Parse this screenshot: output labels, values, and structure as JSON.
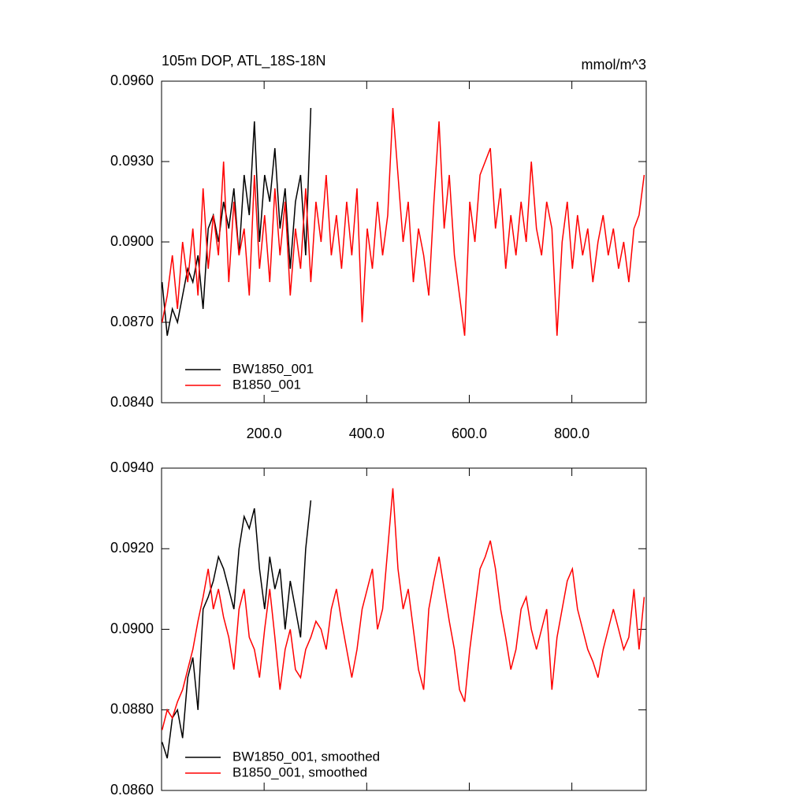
{
  "chart_data": [
    {
      "type": "line",
      "title": "105m DOP, ATL_18S-18N",
      "units": "mmol/m^3",
      "xlim": [
        0,
        945
      ],
      "ylim": [
        0.084,
        0.096
      ],
      "xticks": [
        {
          "value": 200,
          "label": "200.0"
        },
        {
          "value": 400,
          "label": "400.0"
        },
        {
          "value": 600,
          "label": "600.0"
        },
        {
          "value": 800,
          "label": "800.0"
        }
      ],
      "yticks": [
        {
          "value": 0.084,
          "label": "0.0840"
        },
        {
          "value": 0.087,
          "label": "0.0870"
        },
        {
          "value": 0.09,
          "label": "0.0900"
        },
        {
          "value": 0.093,
          "label": "0.0930"
        },
        {
          "value": 0.096,
          "label": "0.0960"
        }
      ],
      "legend": "lower left",
      "series": [
        {
          "name": "BW1850_001",
          "color": "#000000",
          "x": [
            1,
            11,
            21,
            31,
            41,
            51,
            61,
            71,
            81,
            91,
            101,
            111,
            121,
            131,
            141,
            151,
            161,
            171,
            181,
            191,
            201,
            211,
            221,
            231,
            241,
            251,
            261,
            271,
            281,
            291
          ],
          "values": [
            0.0885,
            0.0865,
            0.0875,
            0.087,
            0.088,
            0.089,
            0.0885,
            0.0895,
            0.0875,
            0.0905,
            0.091,
            0.09,
            0.0915,
            0.0905,
            0.092,
            0.0895,
            0.0925,
            0.091,
            0.0945,
            0.09,
            0.0925,
            0.0915,
            0.0935,
            0.0905,
            0.092,
            0.089,
            0.0915,
            0.0925,
            0.0895,
            0.095
          ]
        },
        {
          "name": "B1850_001",
          "color": "#ff0000",
          "x": [
            1,
            11,
            21,
            31,
            41,
            51,
            61,
            71,
            81,
            91,
            101,
            111,
            121,
            131,
            141,
            151,
            161,
            171,
            181,
            191,
            201,
            211,
            221,
            231,
            241,
            251,
            261,
            271,
            281,
            291,
            301,
            311,
            321,
            331,
            341,
            351,
            361,
            371,
            381,
            391,
            401,
            411,
            421,
            431,
            441,
            451,
            461,
            471,
            481,
            491,
            501,
            511,
            521,
            531,
            541,
            551,
            561,
            571,
            581,
            591,
            601,
            611,
            621,
            631,
            641,
            651,
            661,
            671,
            681,
            691,
            701,
            711,
            721,
            731,
            741,
            751,
            761,
            771,
            781,
            791,
            801,
            811,
            821,
            831,
            841,
            851,
            861,
            871,
            881,
            891,
            901,
            911,
            921,
            931,
            941
          ],
          "values": [
            0.087,
            0.088,
            0.0895,
            0.0875,
            0.09,
            0.0885,
            0.0905,
            0.088,
            0.092,
            0.089,
            0.091,
            0.0895,
            0.093,
            0.0885,
            0.0915,
            0.0895,
            0.0905,
            0.088,
            0.0925,
            0.089,
            0.091,
            0.0885,
            0.092,
            0.0895,
            0.0915,
            0.088,
            0.0905,
            0.089,
            0.092,
            0.0885,
            0.0915,
            0.09,
            0.0925,
            0.0895,
            0.091,
            0.089,
            0.0915,
            0.0895,
            0.092,
            0.087,
            0.0905,
            0.089,
            0.0915,
            0.0895,
            0.091,
            0.095,
            0.0925,
            0.09,
            0.0915,
            0.0885,
            0.0905,
            0.0895,
            0.088,
            0.0915,
            0.0945,
            0.0905,
            0.0925,
            0.0895,
            0.088,
            0.0865,
            0.0915,
            0.09,
            0.0925,
            0.093,
            0.0935,
            0.0905,
            0.092,
            0.089,
            0.091,
            0.0895,
            0.0915,
            0.09,
            0.093,
            0.0905,
            0.0895,
            0.0915,
            0.0905,
            0.0865,
            0.09,
            0.0915,
            0.089,
            0.091,
            0.0895,
            0.0905,
            0.0885,
            0.09,
            0.091,
            0.0895,
            0.0905,
            0.089,
            0.09,
            0.0885,
            0.0905,
            0.091,
            0.0925
          ]
        }
      ]
    },
    {
      "type": "line",
      "xlim": [
        0,
        945
      ],
      "ylim": [
        0.086,
        0.094
      ],
      "xticks": [
        200,
        400,
        600,
        800
      ],
      "yticks": [
        {
          "value": 0.086,
          "label": "0.0860"
        },
        {
          "value": 0.088,
          "label": "0.0880"
        },
        {
          "value": 0.09,
          "label": "0.0900"
        },
        {
          "value": 0.092,
          "label": "0.0920"
        },
        {
          "value": 0.094,
          "label": "0.0940"
        }
      ],
      "legend": "lower left",
      "series": [
        {
          "name": "BW1850_001, smoothed",
          "color": "#000000",
          "x": [
            1,
            11,
            21,
            31,
            41,
            51,
            61,
            71,
            81,
            91,
            101,
            111,
            121,
            131,
            141,
            151,
            161,
            171,
            181,
            191,
            201,
            211,
            221,
            231,
            241,
            251,
            261,
            271,
            281,
            291
          ],
          "values": [
            0.0872,
            0.0868,
            0.0878,
            0.088,
            0.0873,
            0.0888,
            0.0893,
            0.088,
            0.0905,
            0.0908,
            0.0912,
            0.0918,
            0.0915,
            0.091,
            0.0905,
            0.092,
            0.0928,
            0.0925,
            0.093,
            0.0915,
            0.0905,
            0.0918,
            0.091,
            0.0915,
            0.09,
            0.0912,
            0.0905,
            0.0898,
            0.092,
            0.0932
          ]
        },
        {
          "name": "B1850_001, smoothed",
          "color": "#ff0000",
          "x": [
            1,
            11,
            21,
            31,
            41,
            51,
            61,
            71,
            81,
            91,
            101,
            111,
            121,
            131,
            141,
            151,
            161,
            171,
            181,
            191,
            201,
            211,
            221,
            231,
            241,
            251,
            261,
            271,
            281,
            291,
            301,
            311,
            321,
            331,
            341,
            351,
            361,
            371,
            381,
            391,
            401,
            411,
            421,
            431,
            441,
            451,
            461,
            471,
            481,
            491,
            501,
            511,
            521,
            531,
            541,
            551,
            561,
            571,
            581,
            591,
            601,
            611,
            621,
            631,
            641,
            651,
            661,
            671,
            681,
            691,
            701,
            711,
            721,
            731,
            741,
            751,
            761,
            771,
            781,
            791,
            801,
            811,
            821,
            831,
            841,
            851,
            861,
            871,
            881,
            891,
            901,
            911,
            921,
            931,
            941
          ],
          "values": [
            0.0875,
            0.088,
            0.0878,
            0.0882,
            0.0885,
            0.089,
            0.0895,
            0.0902,
            0.0908,
            0.0915,
            0.0905,
            0.091,
            0.0903,
            0.0898,
            0.089,
            0.0905,
            0.091,
            0.0898,
            0.0895,
            0.0888,
            0.09,
            0.091,
            0.0898,
            0.0885,
            0.0895,
            0.09,
            0.089,
            0.0888,
            0.0895,
            0.0898,
            0.0902,
            0.09,
            0.0895,
            0.0905,
            0.091,
            0.0902,
            0.0895,
            0.0888,
            0.0895,
            0.0905,
            0.091,
            0.0915,
            0.09,
            0.0905,
            0.092,
            0.0935,
            0.0915,
            0.0905,
            0.091,
            0.09,
            0.089,
            0.0885,
            0.0905,
            0.0912,
            0.0918,
            0.091,
            0.0902,
            0.0895,
            0.0885,
            0.0882,
            0.0895,
            0.0905,
            0.0915,
            0.0918,
            0.0922,
            0.0915,
            0.0905,
            0.0898,
            0.089,
            0.0895,
            0.0905,
            0.0908,
            0.09,
            0.0895,
            0.09,
            0.0905,
            0.0885,
            0.0898,
            0.0905,
            0.0912,
            0.0915,
            0.0905,
            0.09,
            0.0895,
            0.0892,
            0.0888,
            0.0895,
            0.09,
            0.0905,
            0.09,
            0.0895,
            0.0898,
            0.091,
            0.0895,
            0.0908
          ]
        }
      ]
    }
  ]
}
